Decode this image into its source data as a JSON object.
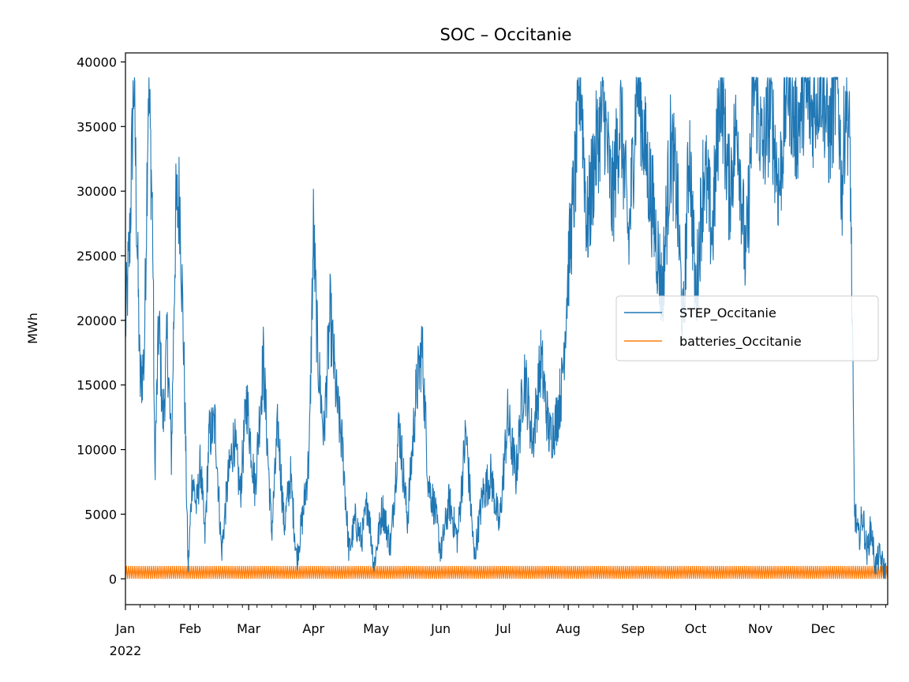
{
  "chart_data": {
    "type": "line",
    "title": "SOC – Occitanie",
    "xlabel": "",
    "ylabel": "MWh",
    "ylim": [
      -2000,
      40700
    ],
    "xlim": [
      "2022-01-01",
      "2022-12-31"
    ],
    "y_ticks": [
      0,
      5000,
      10000,
      15000,
      20000,
      25000,
      30000,
      35000,
      40000
    ],
    "x_ticks": [
      {
        "label": "Jan",
        "date": "2022-01-01"
      },
      {
        "label": "Feb",
        "date": "2022-02-01"
      },
      {
        "label": "Mar",
        "date": "2022-03-01"
      },
      {
        "label": "Apr",
        "date": "2022-04-01"
      },
      {
        "label": "May",
        "date": "2022-05-01"
      },
      {
        "label": "Jun",
        "date": "2022-06-01"
      },
      {
        "label": "Jul",
        "date": "2022-07-01"
      },
      {
        "label": "Aug",
        "date": "2022-08-01"
      },
      {
        "label": "Sep",
        "date": "2022-09-01"
      },
      {
        "label": "Oct",
        "date": "2022-10-01"
      },
      {
        "label": "Nov",
        "date": "2022-11-01"
      },
      {
        "label": "Dec",
        "date": "2022-12-01"
      }
    ],
    "year_label": "2022",
    "grid": false,
    "legend": "center-right",
    "series": [
      {
        "name": "STEP_Occitanie",
        "color": "#1f77b4",
        "x": [
          "2022-01-01",
          "2022-01-03",
          "2022-01-05",
          "2022-01-06",
          "2022-01-08",
          "2022-01-10",
          "2022-01-12",
          "2022-01-14",
          "2022-01-15",
          "2022-01-17",
          "2022-01-19",
          "2022-01-21",
          "2022-01-23",
          "2022-01-25",
          "2022-01-27",
          "2022-01-29",
          "2022-01-31",
          "2022-02-02",
          "2022-02-04",
          "2022-02-06",
          "2022-02-08",
          "2022-02-10",
          "2022-02-13",
          "2022-02-16",
          "2022-02-19",
          "2022-02-22",
          "2022-02-25",
          "2022-02-28",
          "2022-03-04",
          "2022-03-08",
          "2022-03-12",
          "2022-03-15",
          "2022-03-18",
          "2022-03-21",
          "2022-03-24",
          "2022-03-27",
          "2022-03-30",
          "2022-04-01",
          "2022-04-03",
          "2022-04-06",
          "2022-04-09",
          "2022-04-12",
          "2022-04-15",
          "2022-04-18",
          "2022-04-21",
          "2022-04-24",
          "2022-04-27",
          "2022-04-30",
          "2022-05-04",
          "2022-05-08",
          "2022-05-12",
          "2022-05-16",
          "2022-05-20",
          "2022-05-23",
          "2022-05-26",
          "2022-05-29",
          "2022-06-01",
          "2022-06-05",
          "2022-06-09",
          "2022-06-13",
          "2022-06-17",
          "2022-06-21",
          "2022-06-25",
          "2022-06-29",
          "2022-07-03",
          "2022-07-07",
          "2022-07-11",
          "2022-07-15",
          "2022-07-19",
          "2022-07-23",
          "2022-07-26",
          "2022-07-29",
          "2022-08-01",
          "2022-08-04",
          "2022-08-07",
          "2022-08-10",
          "2022-08-14",
          "2022-08-18",
          "2022-08-22",
          "2022-08-26",
          "2022-08-30",
          "2022-09-03",
          "2022-09-07",
          "2022-09-11",
          "2022-09-15",
          "2022-09-19",
          "2022-09-22",
          "2022-09-25",
          "2022-09-28",
          "2022-10-01",
          "2022-10-05",
          "2022-10-09",
          "2022-10-13",
          "2022-10-17",
          "2022-10-21",
          "2022-10-25",
          "2022-10-29",
          "2022-11-02",
          "2022-11-06",
          "2022-11-10",
          "2022-11-14",
          "2022-11-18",
          "2022-11-22",
          "2022-11-26",
          "2022-11-30",
          "2022-12-04",
          "2022-12-08",
          "2022-12-10",
          "2022-12-12",
          "2022-12-14",
          "2022-12-16",
          "2022-12-18",
          "2022-12-20",
          "2022-12-22",
          "2022-12-24",
          "2022-12-26",
          "2022-12-28",
          "2022-12-31"
        ],
        "values": [
          19500,
          26000,
          38800,
          31000,
          15000,
          17000,
          38800,
          28000,
          8300,
          20000,
          12000,
          18500,
          9500,
          28000,
          29500,
          17000,
          500,
          8000,
          5500,
          9000,
          3000,
          11000,
          12000,
          2000,
          7500,
          11000,
          6500,
          14000,
          7000,
          17000,
          3500,
          12000,
          4000,
          8000,
          1500,
          5000,
          9500,
          27000,
          17500,
          11000,
          20500,
          14000,
          10000,
          2000,
          4500,
          3000,
          6000,
          1000,
          5500,
          2500,
          12000,
          4500,
          14000,
          18000,
          7500,
          5500,
          2000,
          6000,
          3000,
          11500,
          1500,
          6500,
          8000,
          4000,
          12500,
          8000,
          16000,
          10500,
          17000,
          11000,
          12000,
          15000,
          24000,
          30500,
          38800,
          27000,
          33000,
          36500,
          29000,
          36000,
          26000,
          38800,
          33000,
          28000,
          22000,
          33500,
          30000,
          19000,
          34000,
          21500,
          32000,
          26500,
          38800,
          30000,
          35500,
          24000,
          38800,
          33000,
          36500,
          30000,
          38800,
          34500,
          37500,
          36000,
          38800,
          34000,
          38800,
          30000,
          37500,
          33000,
          5500,
          3000,
          5000,
          2000,
          4000,
          1000,
          1800,
          500
        ]
      },
      {
        "name": "batteries_Occitanie",
        "color": "#ff7f0e",
        "y_min": 0,
        "y_max": 1000
      }
    ]
  }
}
